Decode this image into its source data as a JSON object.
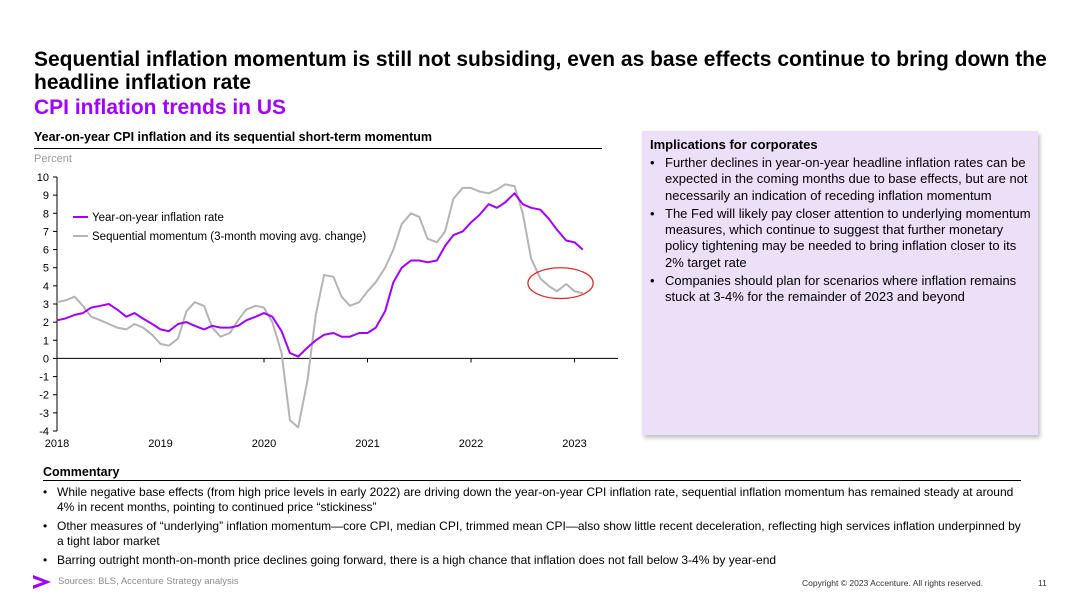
{
  "slide": {
    "title": "Sequential inflation momentum is still not subsiding, even as base effects continue to bring down the headline inflation rate",
    "subtitle": "CPI inflation trends in US",
    "chart_heading": "Year-on-year CPI inflation and its sequential short-term momentum",
    "unit_label": "Percent"
  },
  "panel": {
    "title": "Implications for corporates",
    "bullets": [
      "Further declines in year-on-year headline inflation rates can be expected in the coming months due to base effects, but are not necessarily an indication of receding inflation momentum",
      "The Fed will likely pay closer attention to underlying momentum measures, which continue to suggest that further monetary policy tightening may be needed to bring inflation closer to its 2% target rate",
      "Companies should plan for scenarios where inflation remains stuck at 3-4% for the remainder of 2023 and beyond"
    ],
    "background": "#ecdff8"
  },
  "commentary": {
    "title": "Commentary",
    "bullets": [
      "While negative base effects (from high price levels in early 2022) are driving down the year-on-year CPI inflation rate, sequential inflation momentum has remained steady at around 4% in recent months, pointing to continued price “stickiness”",
      "Other measures of “underlying” inflation momentum—core CPI, median CPI, trimmed mean CPI—also show little recent deceleration, reflecting high services inflation underpinned by a tight labor market",
      "Barring outright month-on-month price declines going forward, there is a high chance that inflation does not fall below 3-4% by year-end"
    ]
  },
  "footer": {
    "sources": "Sources: BLS, Accenture Strategy analysis",
    "copyright": "Copyright © 2023 Accenture. All rights reserved.",
    "page": "11",
    "brand_color": "#a100ff"
  },
  "chart_data": {
    "type": "line",
    "ylim": [
      -4,
      10
    ],
    "yticks": [
      -4,
      -3,
      -2,
      -1,
      0,
      1,
      2,
      3,
      4,
      5,
      6,
      7,
      8,
      9,
      10
    ],
    "xlim": [
      2018.0,
      2023.42
    ],
    "xticks": [
      2018,
      2019,
      2020,
      2021,
      2022,
      2023
    ],
    "grid": false,
    "legend_position": "top-left",
    "highlight": {
      "shape": "ellipse",
      "x_range": [
        2022.55,
        2023.18
      ],
      "y_range": [
        3.3,
        5.0
      ],
      "color": "#d9302c"
    },
    "series": [
      {
        "name": "Year-on-year inflation rate",
        "color": "#a100ff",
        "x": [
          2018.0,
          2018.08,
          2018.17,
          2018.25,
          2018.33,
          2018.42,
          2018.5,
          2018.58,
          2018.67,
          2018.75,
          2018.83,
          2018.92,
          2019.0,
          2019.08,
          2019.17,
          2019.25,
          2019.33,
          2019.42,
          2019.5,
          2019.58,
          2019.67,
          2019.75,
          2019.83,
          2019.92,
          2020.0,
          2020.08,
          2020.17,
          2020.25,
          2020.33,
          2020.42,
          2020.5,
          2020.58,
          2020.67,
          2020.75,
          2020.83,
          2020.92,
          2021.0,
          2021.08,
          2021.17,
          2021.25,
          2021.33,
          2021.42,
          2021.5,
          2021.58,
          2021.67,
          2021.75,
          2021.83,
          2021.92,
          2022.0,
          2022.08,
          2022.17,
          2022.25,
          2022.33,
          2022.42,
          2022.5,
          2022.58,
          2022.67,
          2022.75,
          2022.83,
          2022.92,
          2023.0,
          2023.08
        ],
        "y": [
          2.1,
          2.2,
          2.4,
          2.5,
          2.8,
          2.9,
          3.0,
          2.7,
          2.3,
          2.5,
          2.2,
          1.9,
          1.6,
          1.5,
          1.9,
          2.0,
          1.8,
          1.6,
          1.8,
          1.7,
          1.7,
          1.8,
          2.1,
          2.3,
          2.5,
          2.3,
          1.5,
          0.3,
          0.1,
          0.6,
          1.0,
          1.3,
          1.4,
          1.2,
          1.2,
          1.4,
          1.4,
          1.7,
          2.6,
          4.2,
          5.0,
          5.4,
          5.4,
          5.3,
          5.4,
          6.2,
          6.8,
          7.0,
          7.5,
          7.9,
          8.5,
          8.3,
          8.6,
          9.1,
          8.5,
          8.3,
          8.2,
          7.7,
          7.1,
          6.5,
          6.4,
          6.0
        ]
      },
      {
        "name": "Sequential momentum (3-month moving avg. change)",
        "color": "#b4b4b4",
        "x": [
          2018.0,
          2018.08,
          2018.17,
          2018.25,
          2018.33,
          2018.42,
          2018.5,
          2018.58,
          2018.67,
          2018.75,
          2018.83,
          2018.92,
          2019.0,
          2019.08,
          2019.17,
          2019.25,
          2019.33,
          2019.42,
          2019.5,
          2019.58,
          2019.67,
          2019.75,
          2019.83,
          2019.92,
          2020.0,
          2020.08,
          2020.17,
          2020.25,
          2020.33,
          2020.42,
          2020.5,
          2020.58,
          2020.67,
          2020.75,
          2020.83,
          2020.92,
          2021.0,
          2021.08,
          2021.17,
          2021.25,
          2021.33,
          2021.42,
          2021.5,
          2021.58,
          2021.67,
          2021.75,
          2021.83,
          2021.92,
          2022.0,
          2022.08,
          2022.17,
          2022.25,
          2022.33,
          2022.42,
          2022.5,
          2022.58,
          2022.67,
          2022.75,
          2022.83,
          2022.92,
          2023.0,
          2023.08
        ],
        "y": [
          3.1,
          3.2,
          3.4,
          2.9,
          2.3,
          2.1,
          1.9,
          1.7,
          1.6,
          1.9,
          1.7,
          1.3,
          0.8,
          0.7,
          1.1,
          2.6,
          3.1,
          2.9,
          1.7,
          1.2,
          1.4,
          2.1,
          2.7,
          2.9,
          2.8,
          2.0,
          0.3,
          -3.4,
          -3.8,
          -1.2,
          2.4,
          4.6,
          4.5,
          3.4,
          2.9,
          3.1,
          3.7,
          4.2,
          5.0,
          6.0,
          7.4,
          8.0,
          7.8,
          6.6,
          6.4,
          7.0,
          8.8,
          9.4,
          9.4,
          9.2,
          9.1,
          9.3,
          9.6,
          9.5,
          8.0,
          5.5,
          4.4,
          4.0,
          3.7,
          4.1,
          3.7,
          3.6
        ]
      }
    ]
  }
}
